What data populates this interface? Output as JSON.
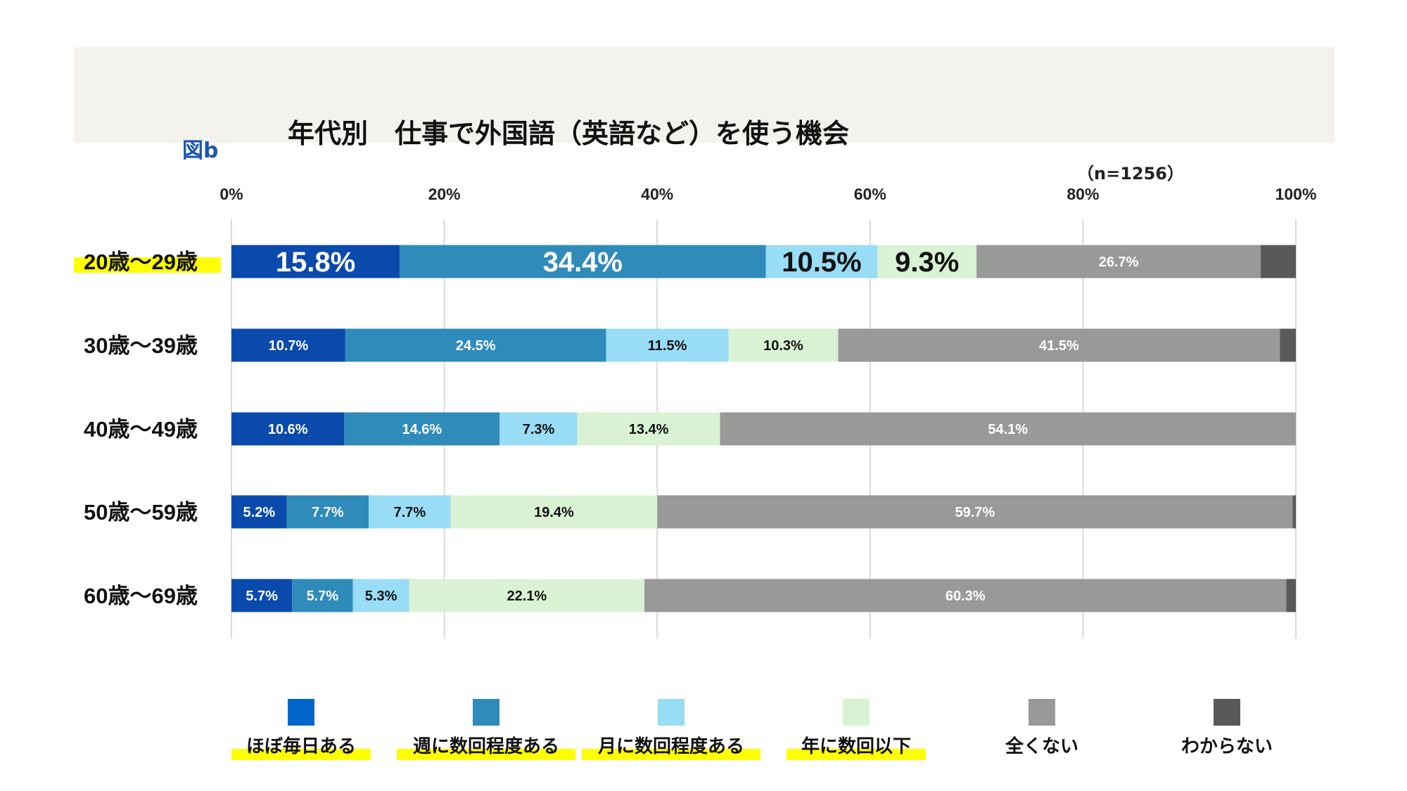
{
  "header": {
    "figure_label": "図b",
    "title": "年代別　仕事で外国語（英語など）を使う機会",
    "sample_size": "（n=1256）"
  },
  "chart_data": {
    "type": "bar",
    "orientation": "horizontal",
    "stacked": true,
    "title": "年代別　仕事で外国語（英語など）を使う機会",
    "xlim": [
      0,
      100
    ],
    "x_ticks": [
      "0%",
      "20%",
      "40%",
      "60%",
      "80%",
      "100%"
    ],
    "grid": true,
    "legend_position": "bottom",
    "categories": [
      "20歳～29歳",
      "30歳～39歳",
      "40歳～49歳",
      "50歳～59歳",
      "60歳～69歳"
    ],
    "highlighted_categories": [
      "20歳～29歳"
    ],
    "series": [
      {
        "name": "ほぼ毎日ある",
        "color": "#0a4aad",
        "legend_color": "#0066cc",
        "label_color": "#ffffff",
        "highlighted": true,
        "values": [
          15.8,
          10.7,
          10.6,
          5.2,
          5.7
        ]
      },
      {
        "name": "週に数回程度ある",
        "color": "#2e8bba",
        "legend_color": "#2e8bba",
        "label_color": "#ffffff",
        "highlighted": true,
        "values": [
          34.4,
          24.5,
          14.6,
          7.7,
          5.7
        ]
      },
      {
        "name": "月に数回程度ある",
        "color": "#99dcf6",
        "legend_color": "#99dcf6",
        "label_color": "#111111",
        "highlighted": true,
        "values": [
          10.5,
          11.5,
          7.3,
          7.7,
          5.3
        ]
      },
      {
        "name": "年に数回以下",
        "color": "#d9f2d3",
        "legend_color": "#d9f2d3",
        "label_color": "#111111",
        "highlighted": true,
        "values": [
          9.3,
          10.3,
          13.4,
          19.4,
          22.1
        ]
      },
      {
        "name": "全くない",
        "color": "#999999",
        "legend_color": "#999999",
        "label_color": "#ffffff",
        "highlighted": false,
        "values": [
          26.7,
          41.5,
          54.1,
          59.7,
          60.3
        ]
      },
      {
        "name": "わからない",
        "color": "#595959",
        "legend_color": "#595959",
        "label_color": "#ffffff",
        "highlighted": false,
        "values": [
          3.3,
          1.5,
          0.0,
          0.3,
          0.9
        ],
        "labels_shown": false
      }
    ]
  }
}
